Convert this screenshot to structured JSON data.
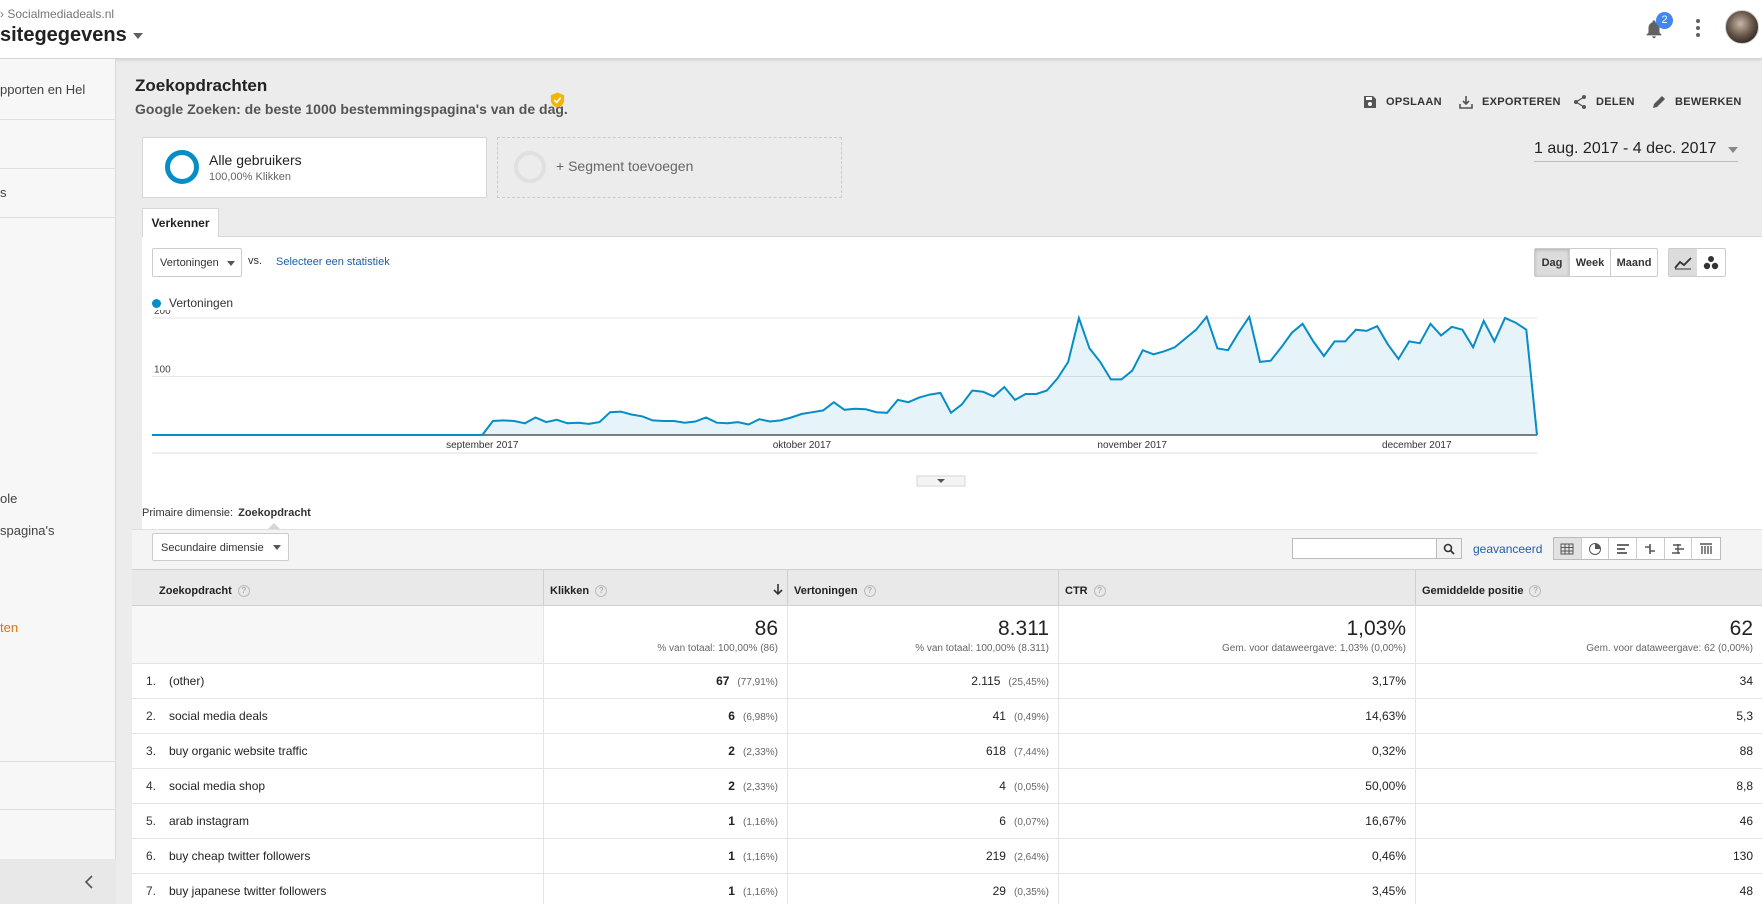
{
  "header": {
    "breadcrumb": "Socialmediadeals.nl",
    "view_title": "sitegegevens",
    "notification_count": "2"
  },
  "sidebar": {
    "items": [
      {
        "label": "pporten en Hel"
      },
      {
        "label": "s"
      },
      {
        "label": "ole"
      },
      {
        "label": "spagina's"
      },
      {
        "label": "ten"
      }
    ]
  },
  "report": {
    "title": "Zoekopdrachten",
    "subtitle": "Google Zoeken: de beste 1000 bestemmingspagina's van de dag.",
    "actions": [
      {
        "label": "OPSLAAN",
        "icon": "save-icon"
      },
      {
        "label": "EXPORTEREN",
        "icon": "export-icon"
      },
      {
        "label": "DELEN",
        "icon": "share-icon"
      },
      {
        "label": "BEWERKEN",
        "icon": "edit-icon"
      }
    ]
  },
  "segments": {
    "active": {
      "name": "Alle gebruikers",
      "detail": "100,00% Klikken"
    },
    "add_label": "+ Segment toevoegen"
  },
  "date_range": "1 aug. 2017 - 4 dec. 2017",
  "explorer": {
    "tab_label": "Verkenner",
    "metric": "Vertoningen",
    "vs_label": "vs.",
    "select_stat_label": "Selecteer een statistiek",
    "periods": [
      "Dag",
      "Week",
      "Maand"
    ],
    "active_period": "Dag"
  },
  "chart_data": {
    "type": "area",
    "series": [
      {
        "name": "Vertoningen",
        "color": "#058dc7",
        "values": [
          0,
          0,
          0,
          0,
          0,
          0,
          0,
          0,
          0,
          0,
          0,
          0,
          0,
          0,
          0,
          0,
          0,
          0,
          0,
          0,
          0,
          0,
          0,
          0,
          0,
          0,
          0,
          0,
          0,
          0,
          0,
          0,
          24,
          25,
          24,
          20,
          30,
          22,
          26,
          20,
          21,
          19,
          22,
          39,
          40,
          35,
          32,
          25,
          24,
          24,
          21,
          23,
          30,
          21,
          20,
          22,
          18,
          27,
          23,
          25,
          30,
          36,
          39,
          42,
          56,
          43,
          45,
          44,
          39,
          38,
          60,
          56,
          64,
          69,
          72,
          38,
          52,
          76,
          74,
          66,
          82,
          60,
          70,
          70,
          76,
          97,
          125,
          200,
          148,
          125,
          95,
          95,
          110,
          145,
          138,
          143,
          150,
          165,
          180,
          202,
          148,
          145,
          175,
          202,
          125,
          127,
          150,
          175,
          190,
          160,
          135,
          160,
          160,
          180,
          178,
          186,
          155,
          130,
          160,
          157,
          190,
          170,
          185,
          180,
          150,
          195,
          160,
          200,
          192,
          180,
          0
        ]
      }
    ],
    "x_labels": [
      "september 2017",
      "oktober 2017",
      "november 2017",
      "december 2017"
    ],
    "y_ticks": [
      100,
      200
    ],
    "ylim": [
      0,
      200
    ],
    "grid": true,
    "legend": "top-left"
  },
  "table": {
    "primary_dimension_label": "Primaire dimensie:",
    "primary_dimension_value": "Zoekopdracht",
    "secondary_dimension_label": "Secundaire dimensie",
    "advanced_label": "geavanceerd",
    "search_value": "",
    "columns": [
      "Zoekopdracht",
      "Klikken",
      "Vertoningen",
      "CTR",
      "Gemiddelde positie"
    ],
    "totals": {
      "klikken": {
        "value": "86",
        "note": "% van totaal: 100,00% (86)"
      },
      "vertoningen": {
        "value": "8.311",
        "note": "% van totaal: 100,00% (8.311)"
      },
      "ctr": {
        "value": "1,03%",
        "note": "Gem. voor dataweergave: 1,03% (0,00%)"
      },
      "positie": {
        "value": "62",
        "note": "Gem. voor dataweergave: 62 (0,00%)"
      }
    },
    "rows": [
      {
        "num": "1.",
        "query": "(other)",
        "clicks": "67",
        "clicks_pct": "(77,91%)",
        "impr": "2.115",
        "impr_pct": "(25,45%)",
        "ctr": "3,17%",
        "pos": "34"
      },
      {
        "num": "2.",
        "query": "social media deals",
        "clicks": "6",
        "clicks_pct": "(6,98%)",
        "impr": "41",
        "impr_pct": "(0,49%)",
        "ctr": "14,63%",
        "pos": "5,3"
      },
      {
        "num": "3.",
        "query": "buy organic website traffic",
        "clicks": "2",
        "clicks_pct": "(2,33%)",
        "impr": "618",
        "impr_pct": "(7,44%)",
        "ctr": "0,32%",
        "pos": "88"
      },
      {
        "num": "4.",
        "query": "social media shop",
        "clicks": "2",
        "clicks_pct": "(2,33%)",
        "impr": "4",
        "impr_pct": "(0,05%)",
        "ctr": "50,00%",
        "pos": "8,8"
      },
      {
        "num": "5.",
        "query": "arab instagram",
        "clicks": "1",
        "clicks_pct": "(1,16%)",
        "impr": "6",
        "impr_pct": "(0,07%)",
        "ctr": "16,67%",
        "pos": "46"
      },
      {
        "num": "6.",
        "query": "buy cheap twitter followers",
        "clicks": "1",
        "clicks_pct": "(1,16%)",
        "impr": "219",
        "impr_pct": "(2,64%)",
        "ctr": "0,46%",
        "pos": "130"
      },
      {
        "num": "7.",
        "query": "buy japanese twitter followers",
        "clicks": "1",
        "clicks_pct": "(1,16%)",
        "impr": "29",
        "impr_pct": "(0,35%)",
        "ctr": "3,45%",
        "pos": "48"
      }
    ]
  }
}
